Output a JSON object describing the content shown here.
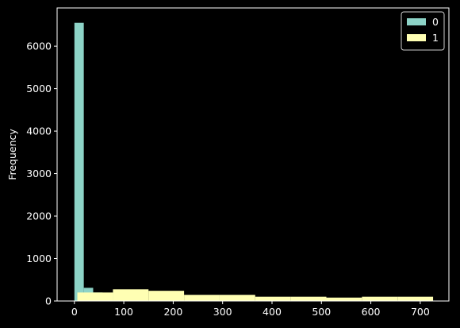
{
  "chart_data": {
    "type": "bar",
    "title": "",
    "xlabel": "",
    "ylabel": "Frequency",
    "xlim": [
      -35,
      758
    ],
    "ylim": [
      0,
      6900
    ],
    "grid": false,
    "legend_position": "top-right",
    "x_ticks": [
      0,
      100,
      200,
      300,
      400,
      500,
      600,
      700
    ],
    "y_ticks": [
      0,
      1000,
      2000,
      3000,
      4000,
      5000,
      6000
    ],
    "series": [
      {
        "name": "0",
        "color": "#8dd3c7",
        "bins": [
          {
            "x0": 0,
            "x1": 19,
            "count": 6550
          },
          {
            "x0": 19,
            "x1": 38,
            "count": 310
          },
          {
            "x0": 38,
            "x1": 57,
            "count": 200
          },
          {
            "x0": 57,
            "x1": 76,
            "count": 190
          },
          {
            "x0": 76,
            "x1": 95,
            "count": 190
          }
        ]
      },
      {
        "name": "1",
        "color": "#ffffb3",
        "bins": [
          {
            "x0": 6,
            "x1": 78,
            "count": 200
          },
          {
            "x0": 78,
            "x1": 150,
            "count": 275
          },
          {
            "x0": 150,
            "x1": 222,
            "count": 240
          },
          {
            "x0": 222,
            "x1": 294,
            "count": 145
          },
          {
            "x0": 294,
            "x1": 366,
            "count": 145
          },
          {
            "x0": 366,
            "x1": 438,
            "count": 100
          },
          {
            "x0": 438,
            "x1": 510,
            "count": 100
          },
          {
            "x0": 510,
            "x1": 582,
            "count": 80
          },
          {
            "x0": 582,
            "x1": 654,
            "count": 100
          },
          {
            "x0": 654,
            "x1": 726,
            "count": 100
          }
        ]
      }
    ]
  }
}
